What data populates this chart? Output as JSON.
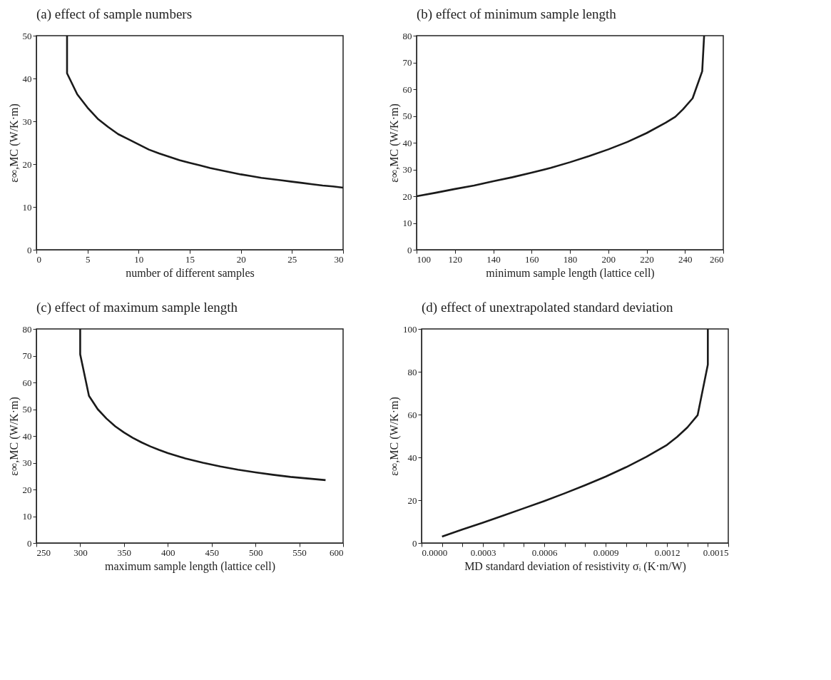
{
  "chart_data": [
    {
      "type": "line",
      "title": "(a) effect of sample numbers",
      "xlabel": "number of different samples",
      "ylabel": "ε∞,MC (W/K·m)",
      "xlim": [
        0,
        30
      ],
      "xticks": [
        0,
        5,
        10,
        15,
        20,
        25,
        30
      ],
      "ylim": [
        0,
        50
      ],
      "yticks": [
        0,
        10,
        20,
        30,
        40,
        50
      ],
      "grid": false,
      "series": [
        {
          "color": "#1a1a1a",
          "x": [
            3,
            3,
            4,
            5,
            6,
            7,
            8,
            9,
            10,
            11,
            12,
            13,
            14,
            15,
            16,
            17,
            18,
            19,
            20,
            21,
            22,
            23,
            24,
            25,
            26,
            27,
            28,
            29,
            30
          ],
          "values": [
            50,
            41.2,
            36.3,
            33.2,
            30.6,
            28.7,
            27.0,
            25.8,
            24.6,
            23.4,
            22.5,
            21.7,
            20.9,
            20.3,
            19.7,
            19.1,
            18.6,
            18.1,
            17.6,
            17.2,
            16.8,
            16.5,
            16.2,
            15.9,
            15.6,
            15.3,
            15.0,
            14.8,
            14.5
          ]
        }
      ]
    },
    {
      "type": "line",
      "title": "(b) effect of minimum sample length",
      "xlabel": "minimum sample length (lattice cell)",
      "ylabel": "ε∞,MC (W/K·m)",
      "xlim": [
        100,
        260
      ],
      "xticks": [
        100,
        120,
        140,
        160,
        180,
        200,
        220,
        240,
        260
      ],
      "ylim": [
        0,
        80
      ],
      "yticks": [
        0,
        10,
        20,
        30,
        40,
        50,
        60,
        70,
        80
      ],
      "grid": false,
      "series": [
        {
          "color": "#1a1a1a",
          "x": [
            100,
            110,
            120,
            130,
            140,
            150,
            160,
            170,
            180,
            190,
            200,
            210,
            220,
            230,
            235,
            239,
            244,
            249,
            250
          ],
          "values": [
            20,
            21.3,
            22.7,
            24.0,
            25.6,
            27.1,
            28.8,
            30.6,
            32.7,
            35.0,
            37.5,
            40.3,
            43.6,
            47.5,
            49.7,
            52.5,
            56.6,
            66.7,
            80
          ]
        }
      ]
    },
    {
      "type": "line",
      "title": "(c) effect of maximum sample length",
      "xlabel": "maximum sample length (lattice cell)",
      "ylabel": "ε∞,MC (W/K·m)",
      "xlim": [
        250,
        600
      ],
      "xticks": [
        250,
        300,
        350,
        400,
        450,
        500,
        550,
        600
      ],
      "ylim": [
        0,
        80
      ],
      "yticks": [
        0,
        10,
        20,
        30,
        40,
        50,
        60,
        70,
        80
      ],
      "grid": false,
      "series": [
        {
          "color": "#1a1a1a",
          "x": [
            300,
            300,
            310,
            320,
            330,
            340,
            350,
            360,
            370,
            380,
            390,
            400,
            420,
            440,
            460,
            480,
            500,
            520,
            540,
            560,
            580
          ],
          "values": [
            80,
            70.5,
            55,
            50,
            46.5,
            43.6,
            41.3,
            39.3,
            37.6,
            36.1,
            34.8,
            33.6,
            31.6,
            30.0,
            28.6,
            27.4,
            26.4,
            25.5,
            24.7,
            24.1,
            23.5
          ]
        }
      ]
    },
    {
      "type": "line",
      "title": "(d) effect of unextrapolated standard deviation",
      "xlabel": "MD standard deviation of resistivity σᵢ (K·m/W)",
      "ylabel": "ε∞,MC (W/K·m)",
      "xlim": [
        0,
        0.0015
      ],
      "xticks": [
        {
          "value": 0,
          "label": "0.0000"
        },
        {
          "value": 0.0001,
          "label": null
        },
        {
          "value": 0.0002,
          "label": null
        },
        {
          "value": 0.0003,
          "label": "0.0003"
        },
        {
          "value": 0.0004,
          "label": null
        },
        {
          "value": 0.0005,
          "label": null
        },
        {
          "value": 0.0006,
          "label": "0.0006"
        },
        {
          "value": 0.0007,
          "label": null
        },
        {
          "value": 0.0008,
          "label": null
        },
        {
          "value": 0.0009,
          "label": "0.0009"
        },
        {
          "value": 0.001,
          "label": null
        },
        {
          "value": 0.0011,
          "label": null
        },
        {
          "value": 0.0012,
          "label": "0.0012"
        },
        {
          "value": 0.0013,
          "label": null
        },
        {
          "value": 0.0014,
          "label": null
        },
        {
          "value": 0.0015,
          "label": "0.0015"
        }
      ],
      "ylim": [
        0,
        100
      ],
      "yticks": [
        0,
        20,
        40,
        60,
        80,
        100
      ],
      "grid": false,
      "series": [
        {
          "color": "#1a1a1a",
          "x": [
            0.0001,
            0.0002,
            0.0003,
            0.0004,
            0.0005,
            0.0006,
            0.0007,
            0.0008,
            0.0009,
            0.001,
            0.0011,
            0.0012,
            0.00125,
            0.0013,
            0.00135,
            0.0014,
            0.0014
          ],
          "values": [
            3,
            6.3,
            9.5,
            12.8,
            16.2,
            19.6,
            23.2,
            27.0,
            31.0,
            35.4,
            40.3,
            45.8,
            49.6,
            54,
            59.7,
            83.3,
            100
          ]
        }
      ]
    }
  ]
}
